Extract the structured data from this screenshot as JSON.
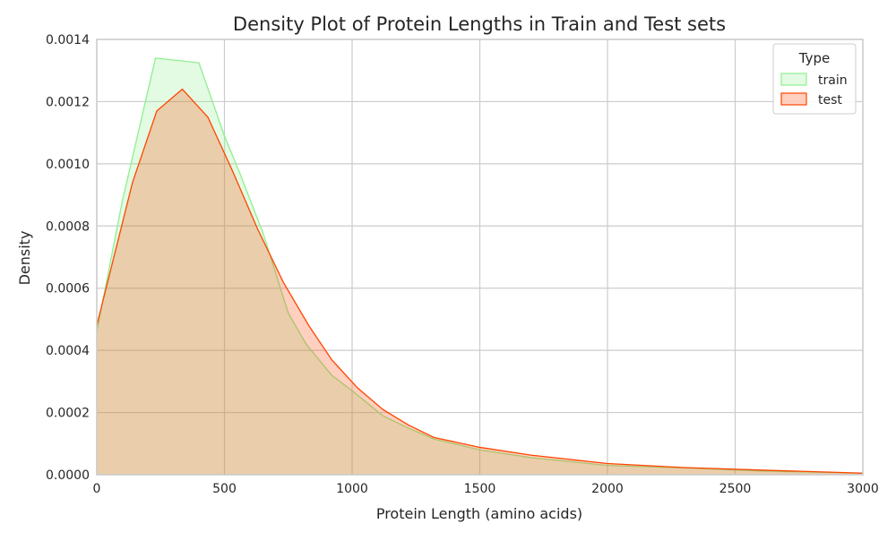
{
  "chart_data": {
    "type": "area",
    "title": "Density Plot of Protein Lengths in Train and Test sets",
    "xlabel": "Protein Length (amino acids)",
    "ylabel": "Density",
    "xlim": [
      0,
      3000
    ],
    "ylim": [
      0,
      0.0014
    ],
    "xticks": [
      0,
      500,
      1000,
      1500,
      2000,
      2500,
      3000
    ],
    "xtick_labels": [
      "0",
      "500",
      "1000",
      "1500",
      "2000",
      "2500",
      "3000"
    ],
    "yticks": [
      0,
      0.0002,
      0.0004,
      0.0006,
      0.0008,
      0.001,
      0.0012,
      0.0014
    ],
    "ytick_labels": [
      "0.0000",
      "0.0002",
      "0.0004",
      "0.0006",
      "0.0008",
      "0.0010",
      "0.0012",
      "0.0014"
    ],
    "grid": true,
    "legend": {
      "title": "Type",
      "placement": "top-right"
    },
    "series": [
      {
        "name": "train",
        "line_color": "#90ee90",
        "fill_color": "#90ee90",
        "fill_opacity": 0.25,
        "points": [
          [
            0,
            0.00046
          ],
          [
            100,
            0.00088
          ],
          [
            230,
            0.00134
          ],
          [
            400,
            0.001325
          ],
          [
            500,
            0.00109
          ],
          [
            560,
            0.00097
          ],
          [
            650,
            0.00078
          ],
          [
            750,
            0.00052
          ],
          [
            820,
            0.00042
          ],
          [
            920,
            0.00032
          ],
          [
            1000,
            0.00027
          ],
          [
            1120,
            0.00019
          ],
          [
            1220,
            0.00015
          ],
          [
            1320,
            0.000115
          ],
          [
            1500,
            8e-05
          ],
          [
            1700,
            5.5e-05
          ],
          [
            2000,
            3e-05
          ],
          [
            2300,
            2.2e-05
          ],
          [
            2600,
            1.2e-05
          ],
          [
            3000,
            5e-06
          ]
        ]
      },
      {
        "name": "test",
        "line_color": "#ff4500",
        "fill_color": "#ff4500",
        "fill_opacity": 0.25,
        "points": [
          [
            0,
            0.00048
          ],
          [
            140,
            0.00094
          ],
          [
            235,
            0.00117
          ],
          [
            335,
            0.00124
          ],
          [
            435,
            0.00115
          ],
          [
            530,
            0.00098
          ],
          [
            630,
            0.00079
          ],
          [
            730,
            0.00062
          ],
          [
            830,
            0.00048
          ],
          [
            920,
            0.00037
          ],
          [
            1020,
            0.00028
          ],
          [
            1120,
            0.00021
          ],
          [
            1220,
            0.00016
          ],
          [
            1320,
            0.00012
          ],
          [
            1500,
            8.8e-05
          ],
          [
            1700,
            6.3e-05
          ],
          [
            2000,
            3.6e-05
          ],
          [
            2300,
            2.3e-05
          ],
          [
            2600,
            1.5e-05
          ],
          [
            3000,
            5e-06
          ]
        ]
      }
    ]
  }
}
